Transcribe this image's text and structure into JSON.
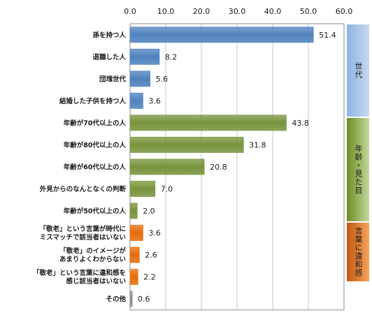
{
  "chart_data": {
    "type": "bar",
    "orientation": "horizontal",
    "xlim": [
      0,
      60
    ],
    "ticks": [
      "0.0",
      "10.0",
      "20.0",
      "30.0",
      "40.0",
      "50.0",
      "60.0"
    ],
    "grid": true,
    "categories": [
      "孫を持つ人",
      "退職した人",
      "団塊世代",
      "結婚した子供を持つ人",
      "年齢が70代以上の人",
      "年齢が80代以上の人",
      "年齢が60代以上の人",
      "外見からのなんとなくの判断",
      "年齢が50代以上の人",
      "「敬老」という言葉が時代に\nミスマッチで該当者はいない",
      "「敬老」のイメージが\nあまりよくわからない",
      "「敬老」という言葉に違和感を\n感じ該当者はいない",
      "その他"
    ],
    "values": [
      51.4,
      8.2,
      5.6,
      3.6,
      43.8,
      31.8,
      20.8,
      7.0,
      2.0,
      3.6,
      2.6,
      2.2,
      0.6
    ],
    "value_labels": [
      "51.4",
      "8.2",
      "5.6",
      "3.6",
      "43.8",
      "31.8",
      "20.8",
      "7.0",
      "2.0",
      "3.6",
      "2.6",
      "2.2",
      "0.6"
    ],
    "groups": [
      {
        "label": "世代",
        "color": "#4f81bd",
        "count": 4
      },
      {
        "label": "年齢・見た目",
        "color": "#77933c",
        "count": 5
      },
      {
        "label": "言葉に違和感",
        "color": "#e46c0a",
        "count": 3
      },
      {
        "label": "",
        "color": "#8c8c8c",
        "count": 1
      }
    ]
  }
}
